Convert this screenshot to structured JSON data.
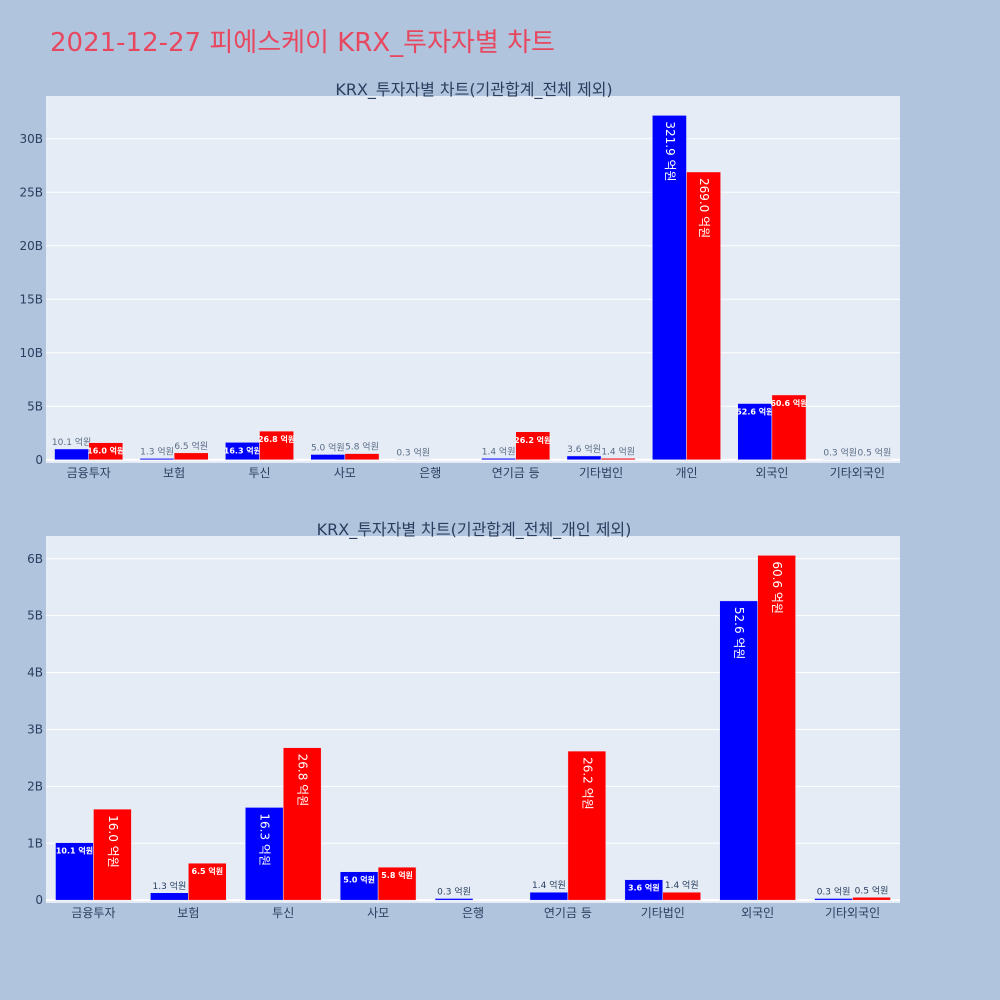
{
  "title": "2021-12-27 피에스케이 KRX_투자자별 차트",
  "colors": {
    "background": "#b0c4de",
    "plot_bg": "#e5ecf6",
    "series_a": "#0000ff",
    "series_b": "#ff0000",
    "title": "#e8485f"
  },
  "chart_data": [
    {
      "type": "bar",
      "title": "KRX_투자자별 차트(기관합계_전체 제외)",
      "categories": [
        "금융투자",
        "보험",
        "투신",
        "사모",
        "은행",
        "연기금 등",
        "기타법인",
        "개인",
        "외국인",
        "기타외국인"
      ],
      "series": [
        {
          "values": [
            1.01,
            0.13,
            1.63,
            0.5,
            0.03,
            0.14,
            0.36,
            32.19,
            5.26,
            0.03
          ],
          "labels": [
            "10.1 억원",
            "1.3 억원",
            "16.3 억원",
            "5.0 억원",
            "0.3 억원",
            "1.4 억원",
            "3.6 억원",
            "321.9 억원",
            "52.6 억원",
            "0.3 억원"
          ]
        },
        {
          "values": [
            1.6,
            0.65,
            2.68,
            0.58,
            0,
            2.62,
            0.14,
            26.9,
            6.06,
            0.05
          ],
          "labels": [
            "16.0 억원",
            "6.5 억원",
            "26.8 억원",
            "5.8 억원",
            "",
            "26.2 억원",
            "1.4 억원",
            "269.0 억원",
            "60.6 억원",
            "0.5 억원"
          ]
        }
      ],
      "y_ticks": [
        0,
        5,
        10,
        15,
        20,
        25,
        30
      ],
      "y_tick_labels": [
        "0",
        "5B",
        "10B",
        "15B",
        "20B",
        "25B",
        "30B"
      ],
      "ylim": [
        -0.3,
        34
      ],
      "grid": true
    },
    {
      "type": "bar",
      "title": "KRX_투자자별 차트(기관합계_전체_개인 제외)",
      "categories": [
        "금융투자",
        "보험",
        "투신",
        "사모",
        "은행",
        "연기금 등",
        "기타법인",
        "외국인",
        "기타외국인"
      ],
      "series": [
        {
          "values": [
            1.01,
            0.13,
            1.63,
            0.5,
            0.03,
            0.14,
            0.36,
            5.26,
            0.03
          ],
          "labels": [
            "10.1 억원",
            "1.3 억원",
            "16.3 억원",
            "5.0 억원",
            "0.3 억원",
            "1.4 억원",
            "3.6 억원",
            "52.6 억원",
            "0.3 억원"
          ]
        },
        {
          "values": [
            1.6,
            0.65,
            2.68,
            0.58,
            0,
            2.62,
            0.14,
            6.06,
            0.05
          ],
          "labels": [
            "16.0 억원",
            "6.5 억원",
            "26.8 억원",
            "5.8 억원",
            "",
            "26.2 억원",
            "1.4 억원",
            "60.6 억원",
            "0.5 억원"
          ]
        }
      ],
      "y_ticks": [
        0,
        1,
        2,
        3,
        4,
        5,
        6
      ],
      "y_tick_labels": [
        "0",
        "1B",
        "2B",
        "3B",
        "4B",
        "5B",
        "6B"
      ],
      "ylim": [
        -0.05,
        6.4
      ],
      "grid": true
    }
  ]
}
